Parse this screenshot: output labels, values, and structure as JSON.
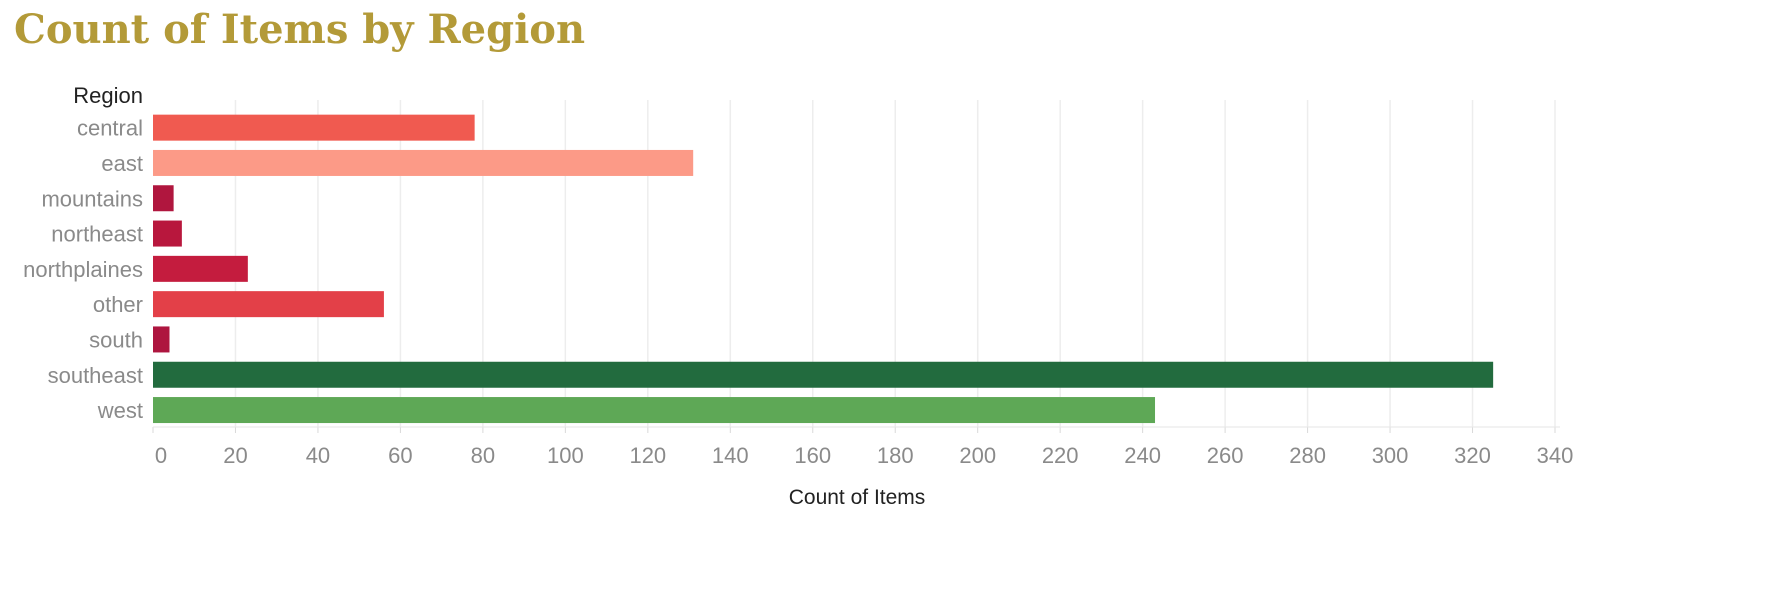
{
  "chart_data": {
    "type": "bar",
    "orientation": "horizontal",
    "title": "Count of Items by Region",
    "row_header": "Region",
    "xlabel": "Count of Items",
    "xlim": [
      0,
      340
    ],
    "xticks": [
      0,
      20,
      40,
      60,
      80,
      100,
      120,
      140,
      160,
      180,
      200,
      220,
      240,
      260,
      280,
      300,
      320,
      340
    ],
    "grid": true,
    "categories": [
      "central",
      "east",
      "mountains",
      "northeast",
      "northplaines",
      "other",
      "south",
      "southeast",
      "west"
    ],
    "values": [
      78,
      131,
      5,
      7,
      23,
      56,
      4,
      325,
      243
    ],
    "colors": [
      "#f05a50",
      "#fc9a87",
      "#b0163e",
      "#b8173d",
      "#c41c3e",
      "#e34048",
      "#ae153f",
      "#226b3e",
      "#5ea856"
    ]
  }
}
